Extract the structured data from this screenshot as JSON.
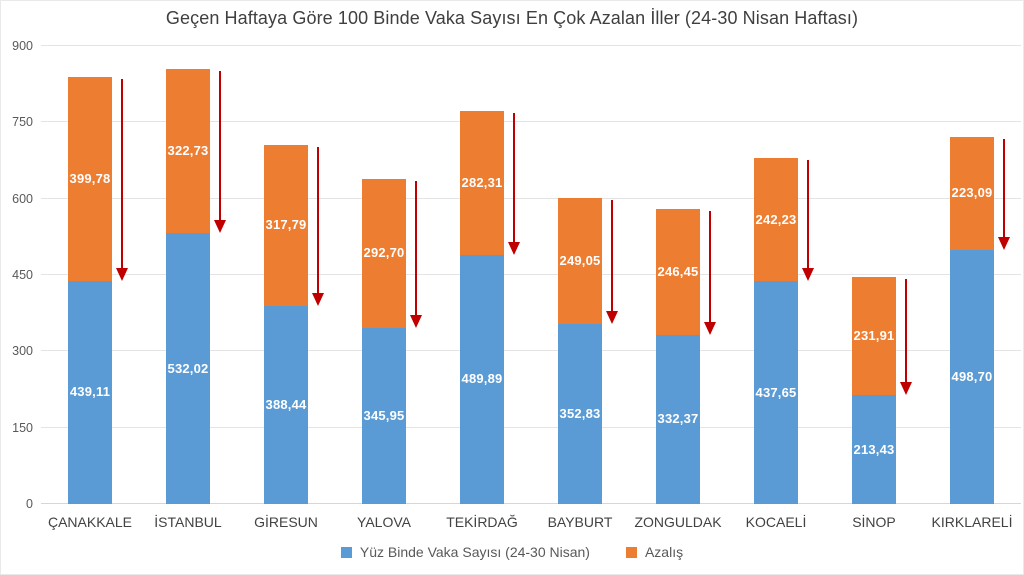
{
  "chart_data": {
    "type": "bar",
    "stacked": true,
    "title": "Geçen Haftaya Göre 100 Binde Vaka Sayısı En Çok Azalan İller (24-30 Nisan Haftası)",
    "categories": [
      "ÇANAKKALE",
      "İSTANBUL",
      "GİRESUN",
      "YALOVA",
      "TEKİRDAĞ",
      "BAYBURT",
      "ZONGULDAK",
      "KOCAELİ",
      "SİNOP",
      "KIRKLARELİ"
    ],
    "series": [
      {
        "name": "Yüz Binde Vaka Sayısı (24-30 Nisan)",
        "color": "#5B9BD5",
        "values": [
          439.11,
          532.02,
          388.44,
          345.95,
          489.89,
          352.83,
          332.37,
          437.65,
          213.43,
          498.7
        ],
        "labels": [
          "439,11",
          "532,02",
          "388,44",
          "345,95",
          "489,89",
          "352,83",
          "332,37",
          "437,65",
          "213,43",
          "498,70"
        ]
      },
      {
        "name": "Azalış",
        "color": "#ED7D31",
        "values": [
          399.78,
          322.73,
          317.79,
          292.7,
          282.31,
          249.05,
          246.45,
          242.23,
          231.91,
          223.09
        ],
        "labels": [
          "399,78",
          "322,73",
          "317,79",
          "292,70",
          "282,31",
          "249,05",
          "246,45",
          "242,23",
          "231,91",
          "223,09"
        ]
      }
    ],
    "y_axis": {
      "min": 0,
      "max": 900,
      "step": 150,
      "tick_labels": [
        "0",
        "150",
        "300",
        "450",
        "600",
        "750",
        "900"
      ]
    },
    "grid": true,
    "legend_position": "bottom",
    "annotations": {
      "type": "decrease-arrow",
      "color": "#C00000",
      "description": "red downward arrow spanning the Azalış segment of each bar"
    }
  },
  "legend": {
    "items": [
      {
        "label": "Yüz Binde Vaka Sayısı (24-30 Nisan)",
        "color": "#5B9BD5"
      },
      {
        "label": "Azalış",
        "color": "#ED7D31"
      }
    ]
  },
  "colors": {
    "cases_blue": "#5B9BD5",
    "decrease_orange": "#ED7D31",
    "arrow_red": "#C00000",
    "text_gray": "#595959",
    "gridline_gray": "#e4e4e4"
  }
}
